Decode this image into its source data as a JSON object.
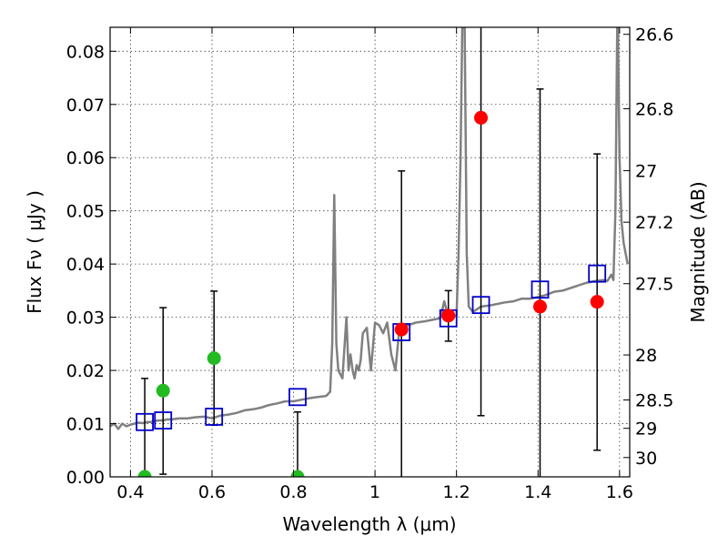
{
  "chart_data": {
    "type": "scatter",
    "xlabel": "Wavelength  λ (μm)",
    "ylabel": "Flux  Fν  ( μJy )",
    "y2label": "Magnitude (AB)",
    "xlim": [
      0.35,
      1.625
    ],
    "ylim": [
      0.0,
      0.0845
    ],
    "grid": true,
    "x_ticks": [
      {
        "value": 0.4,
        "label": "0.4"
      },
      {
        "value": 0.6,
        "label": "0.6"
      },
      {
        "value": 0.8,
        "label": "0.8"
      },
      {
        "value": 1.0,
        "label": "1"
      },
      {
        "value": 1.2,
        "label": "1.2"
      },
      {
        "value": 1.4,
        "label": "1.4"
      },
      {
        "value": 1.6,
        "label": "1.6"
      }
    ],
    "y_ticks": [
      {
        "value": 0.0,
        "label": "0.00"
      },
      {
        "value": 0.01,
        "label": "0.01"
      },
      {
        "value": 0.02,
        "label": "0.02"
      },
      {
        "value": 0.03,
        "label": "0.03"
      },
      {
        "value": 0.04,
        "label": "0.04"
      },
      {
        "value": 0.05,
        "label": "0.05"
      },
      {
        "value": 0.06,
        "label": "0.06"
      },
      {
        "value": 0.07,
        "label": "0.07"
      },
      {
        "value": 0.08,
        "label": "0.08"
      }
    ],
    "y2_ticks": [
      {
        "mag": 26.6,
        "label": "26.6"
      },
      {
        "mag": 26.8,
        "label": "26.8"
      },
      {
        "mag": 27.0,
        "label": "27"
      },
      {
        "mag": 27.2,
        "label": "27.2"
      },
      {
        "mag": 27.5,
        "label": "27.5"
      },
      {
        "mag": 28.0,
        "label": "28"
      },
      {
        "mag": 28.5,
        "label": "28.5"
      },
      {
        "mag": 29.0,
        "label": "29"
      },
      {
        "mag": 30.0,
        "label": "30"
      }
    ],
    "colors": {
      "model_line": "#808080",
      "model_points": "#0000cc",
      "optical_points": "#22bb22",
      "nir_points": "#ff0000",
      "error_bars": "#000000"
    },
    "series": [
      {
        "name": "model-spectrum",
        "kind": "line",
        "x": [
          0.35,
          0.36,
          0.37,
          0.38,
          0.39,
          0.4,
          0.41,
          0.42,
          0.43,
          0.44,
          0.45,
          0.46,
          0.47,
          0.48,
          0.49,
          0.5,
          0.52,
          0.54,
          0.56,
          0.58,
          0.6,
          0.62,
          0.64,
          0.66,
          0.68,
          0.7,
          0.72,
          0.74,
          0.76,
          0.78,
          0.8,
          0.82,
          0.84,
          0.86,
          0.88,
          0.89,
          0.895,
          0.9,
          0.905,
          0.91,
          0.92,
          0.93,
          0.935,
          0.94,
          0.945,
          0.95,
          0.955,
          0.96,
          0.965,
          0.97,
          0.98,
          0.99,
          1.0,
          1.01,
          1.02,
          1.03,
          1.04,
          1.05,
          1.06,
          1.08,
          1.1,
          1.12,
          1.14,
          1.16,
          1.17,
          1.18,
          1.19,
          1.2,
          1.205,
          1.21,
          1.215,
          1.22,
          1.225,
          1.23,
          1.24,
          1.26,
          1.28,
          1.3,
          1.32,
          1.34,
          1.36,
          1.38,
          1.4,
          1.42,
          1.44,
          1.46,
          1.48,
          1.5,
          1.52,
          1.54,
          1.56,
          1.57,
          1.58,
          1.585,
          1.59,
          1.595,
          1.6,
          1.605,
          1.61,
          1.615,
          1.62
        ],
        "y": [
          0.0095,
          0.01,
          0.009,
          0.01,
          0.0095,
          0.0098,
          0.01,
          0.0102,
          0.0101,
          0.0103,
          0.0103,
          0.0105,
          0.0106,
          0.0106,
          0.0108,
          0.0108,
          0.011,
          0.011,
          0.0112,
          0.0113,
          0.011,
          0.0115,
          0.0117,
          0.012,
          0.0125,
          0.0127,
          0.013,
          0.0135,
          0.0138,
          0.0142,
          0.0142,
          0.0145,
          0.0148,
          0.015,
          0.0152,
          0.016,
          0.025,
          0.053,
          0.025,
          0.02,
          0.0185,
          0.03,
          0.02,
          0.023,
          0.02,
          0.0185,
          0.021,
          0.02,
          0.022,
          0.027,
          0.028,
          0.02,
          0.029,
          0.0285,
          0.027,
          0.029,
          0.023,
          0.02,
          0.028,
          0.0285,
          0.029,
          0.0292,
          0.0295,
          0.0298,
          0.033,
          0.03,
          0.0302,
          0.0303,
          0.042,
          0.06,
          0.09,
          0.085,
          0.042,
          0.032,
          0.031,
          0.032,
          0.0322,
          0.0325,
          0.0328,
          0.033,
          0.0335,
          0.0335,
          0.0338,
          0.0342,
          0.0348,
          0.035,
          0.0355,
          0.036,
          0.0365,
          0.0368,
          0.037,
          0.0368,
          0.038,
          0.037,
          0.05,
          0.09,
          0.06,
          0.048,
          0.044,
          0.042,
          0.04
        ]
      },
      {
        "name": "model-photometry",
        "kind": "open-square",
        "x": [
          0.435,
          0.48,
          0.605,
          0.81,
          1.065,
          1.18,
          1.26,
          1.405,
          1.545
        ],
        "y": [
          0.0103,
          0.0106,
          0.0113,
          0.015,
          0.0272,
          0.0298,
          0.0323,
          0.0352,
          0.0382
        ]
      },
      {
        "name": "observed-optical",
        "kind": "filled-circle",
        "x": [
          0.435,
          0.48,
          0.605,
          0.81
        ],
        "y": [
          0.0,
          0.0162,
          0.0223,
          0.0
        ],
        "yerr_low": [
          0.0,
          0.0005,
          0.0097,
          0.0
        ],
        "yerr_high": [
          0.0185,
          0.0318,
          0.0349,
          0.0122
        ]
      },
      {
        "name": "observed-nir",
        "kind": "filled-circle",
        "x": [
          1.065,
          1.18,
          1.26,
          1.405,
          1.545
        ],
        "y": [
          0.0277,
          0.0303,
          0.0675,
          0.032,
          0.0329
        ],
        "yerr_low": [
          0.0,
          0.0255,
          0.0115,
          0.0,
          0.005
        ],
        "yerr_high": [
          0.0575,
          0.035,
          0.09,
          0.0729,
          0.0607
        ]
      }
    ]
  }
}
